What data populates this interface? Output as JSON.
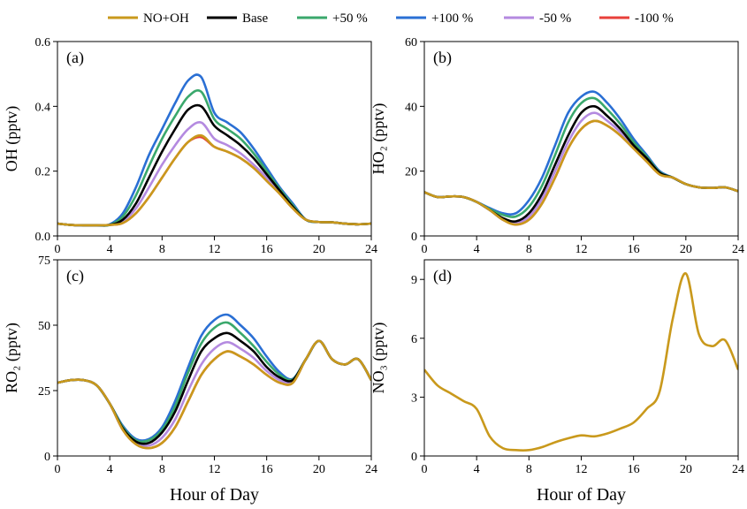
{
  "chart_data": [
    {
      "type": "line",
      "label": "(a)",
      "ylabel": "OH (pptv)",
      "x": [
        0,
        1,
        2,
        3,
        4,
        5,
        6,
        7,
        8,
        9,
        10,
        11,
        12,
        13,
        14,
        15,
        16,
        17,
        18,
        19,
        20,
        21,
        22,
        23,
        24
      ],
      "xlim": [
        0,
        24
      ],
      "xticks": [
        0,
        4,
        8,
        12,
        16,
        20,
        24
      ],
      "ylim": [
        0,
        0.6
      ],
      "yticks": [
        {
          "value": 0,
          "label": "0.0"
        },
        0.2,
        0.4,
        0.6
      ],
      "series": [
        {
          "name": "NO+OH",
          "color": "#c9991c",
          "values": [
            0.038,
            0.034,
            0.033,
            0.033,
            0.034,
            0.04,
            0.07,
            0.12,
            0.18,
            0.24,
            0.29,
            0.31,
            0.275,
            0.26,
            0.24,
            0.21,
            0.17,
            0.13,
            0.085,
            0.05,
            0.043,
            0.042,
            0.038,
            0.036,
            0.038
          ]
        },
        {
          "name": "Base",
          "color": "#000000",
          "values": [
            0.038,
            0.034,
            0.033,
            0.033,
            0.034,
            0.05,
            0.1,
            0.18,
            0.26,
            0.33,
            0.39,
            0.4,
            0.34,
            0.31,
            0.28,
            0.24,
            0.19,
            0.14,
            0.09,
            0.05,
            0.043,
            0.042,
            0.038,
            0.036,
            0.038
          ]
        },
        {
          "name": "+50 %",
          "color": "#3aa86c",
          "values": [
            0.038,
            0.034,
            0.033,
            0.033,
            0.034,
            0.06,
            0.125,
            0.215,
            0.3,
            0.37,
            0.43,
            0.445,
            0.36,
            0.33,
            0.3,
            0.255,
            0.2,
            0.145,
            0.095,
            0.05,
            0.043,
            0.042,
            0.038,
            0.036,
            0.038
          ]
        },
        {
          "name": "+100 %",
          "color": "#2a6fd4",
          "values": [
            0.038,
            0.034,
            0.033,
            0.033,
            0.036,
            0.07,
            0.15,
            0.25,
            0.33,
            0.41,
            0.48,
            0.49,
            0.38,
            0.35,
            0.32,
            0.27,
            0.21,
            0.15,
            0.1,
            0.05,
            0.043,
            0.042,
            0.038,
            0.036,
            0.038
          ]
        },
        {
          "name": "-50 %",
          "color": "#b48ae0",
          "values": [
            0.038,
            0.034,
            0.033,
            0.033,
            0.034,
            0.045,
            0.085,
            0.15,
            0.22,
            0.28,
            0.33,
            0.35,
            0.3,
            0.28,
            0.255,
            0.22,
            0.18,
            0.135,
            0.09,
            0.05,
            0.043,
            0.042,
            0.038,
            0.036,
            0.038
          ]
        },
        {
          "name": "-100 %",
          "color": "#e8403a",
          "values": [
            0.038,
            0.034,
            0.033,
            0.033,
            0.034,
            0.04,
            0.07,
            0.12,
            0.18,
            0.24,
            0.29,
            0.305,
            0.275,
            0.26,
            0.24,
            0.21,
            0.17,
            0.13,
            0.085,
            0.05,
            0.043,
            0.042,
            0.038,
            0.036,
            0.038
          ]
        }
      ]
    },
    {
      "type": "line",
      "label": "(b)",
      "ylabel": "HO₂ (pptv)",
      "x": [
        0,
        1,
        2,
        3,
        4,
        5,
        6,
        7,
        8,
        9,
        10,
        11,
        12,
        13,
        14,
        15,
        16,
        17,
        18,
        19,
        20,
        21,
        22,
        23,
        24
      ],
      "xlim": [
        0,
        24
      ],
      "xticks": [
        0,
        4,
        8,
        12,
        16,
        20,
        24
      ],
      "ylim": [
        0,
        60
      ],
      "yticks": [
        0,
        20,
        40,
        60
      ],
      "series": [
        {
          "name": "NO+OH",
          "color": "#c9991c",
          "values": [
            13.5,
            12,
            12.2,
            12,
            10.5,
            8,
            5,
            3.5,
            5,
            10,
            18,
            27,
            33,
            35.5,
            34,
            31,
            27,
            23,
            19,
            18,
            16,
            15,
            14.8,
            15,
            13.8
          ]
        },
        {
          "name": "Base",
          "color": "#000000",
          "values": [
            13.5,
            12,
            12.2,
            12,
            10.5,
            8,
            5.5,
            4.5,
            7,
            13,
            22,
            31,
            38,
            40,
            37,
            33,
            28,
            24,
            19.5,
            18,
            16,
            15,
            14.8,
            15,
            13.8
          ]
        },
        {
          "name": "+50 %",
          "color": "#3aa86c",
          "values": [
            13.5,
            12,
            12.2,
            12,
            10.5,
            8.3,
            6.5,
            6,
            9,
            15.5,
            25,
            35,
            41,
            42.5,
            39,
            34.5,
            29,
            24.5,
            19.7,
            18,
            16,
            15,
            14.8,
            15,
            13.8
          ]
        },
        {
          "name": "+100 %",
          "color": "#2a6fd4",
          "values": [
            13.5,
            12,
            12.2,
            12,
            10.5,
            8.6,
            7,
            7,
            11,
            18,
            28,
            38,
            43,
            44.5,
            41,
            36,
            30,
            25,
            20,
            18,
            16,
            15,
            14.8,
            15,
            13.8
          ]
        },
        {
          "name": "-50 %",
          "color": "#b48ae0",
          "values": [
            13.5,
            12,
            12.2,
            12,
            10.5,
            8,
            5,
            4,
            6,
            11.5,
            20,
            29,
            35.5,
            38,
            35.5,
            32,
            27.5,
            23.5,
            19.2,
            18,
            16,
            15,
            14.8,
            15,
            13.8
          ]
        },
        {
          "name": "-100 %",
          "color": "#e8403a",
          "values": [
            13.5,
            12,
            12.2,
            12,
            10.5,
            8,
            5,
            3.5,
            5,
            10,
            18,
            27,
            33,
            35.5,
            34,
            31,
            27,
            23,
            19,
            18,
            16,
            15,
            14.8,
            15,
            13.8
          ]
        }
      ]
    },
    {
      "type": "line",
      "label": "(c)",
      "ylabel": "RO₂ (pptv)",
      "xlabel": "Hour of Day",
      "x": [
        0,
        1,
        2,
        3,
        4,
        5,
        6,
        7,
        8,
        9,
        10,
        11,
        12,
        13,
        14,
        15,
        16,
        17,
        18,
        19,
        20,
        21,
        22,
        23,
        24
      ],
      "xlim": [
        0,
        24
      ],
      "xticks": [
        0,
        4,
        8,
        12,
        16,
        20,
        24
      ],
      "ylim": [
        0,
        75
      ],
      "yticks": [
        0,
        25,
        50,
        75
      ],
      "series": [
        {
          "name": "NO+OH",
          "color": "#c9991c",
          "values": [
            28,
            29,
            29,
            27,
            20,
            10,
            4.5,
            3,
            5,
            11,
            21,
            31,
            37,
            40,
            38,
            35,
            31,
            28,
            28,
            37,
            44,
            37,
            35,
            37,
            29
          ]
        },
        {
          "name": "Base",
          "color": "#000000",
          "values": [
            28,
            29,
            29,
            27,
            20,
            10.5,
            5.5,
            5,
            9,
            17,
            29,
            40,
            45,
            47,
            44,
            40,
            34,
            30,
            29,
            37,
            44,
            37,
            35,
            37,
            29
          ]
        },
        {
          "name": "+50 %",
          "color": "#3aa86c",
          "values": [
            28,
            29,
            29,
            27,
            20,
            11,
            6,
            6,
            10,
            19,
            32,
            43,
            49,
            51,
            47,
            42,
            36,
            31,
            29.3,
            37,
            44,
            37,
            35,
            37,
            29
          ]
        },
        {
          "name": "+100 %",
          "color": "#2a6fd4",
          "values": [
            28,
            29,
            29,
            27,
            20,
            11.5,
            6.5,
            6.5,
            11,
            21,
            34,
            46,
            52,
            54,
            50,
            45,
            38,
            32,
            29.5,
            37,
            44,
            37,
            35,
            37,
            29
          ]
        },
        {
          "name": "-50 %",
          "color": "#b48ae0",
          "values": [
            28,
            29,
            29,
            27,
            20,
            10,
            5,
            4,
            7,
            14,
            25,
            35,
            41,
            43.5,
            41,
            37.5,
            32.5,
            29,
            28.5,
            37,
            44,
            37,
            35,
            37,
            29
          ]
        },
        {
          "name": "-100 %",
          "color": "#e8403a",
          "values": [
            28,
            29,
            29,
            27,
            20,
            10,
            4.5,
            3,
            5,
            11,
            21,
            31,
            37,
            40,
            38,
            35,
            31,
            28,
            28,
            37,
            44,
            37,
            35,
            37,
            29
          ]
        }
      ]
    },
    {
      "type": "line",
      "label": "(d)",
      "ylabel": "NO₃ (pptv)",
      "xlabel": "Hour of Day",
      "x": [
        0,
        1,
        2,
        3,
        4,
        5,
        6,
        7,
        8,
        9,
        10,
        11,
        12,
        13,
        14,
        15,
        16,
        17,
        18,
        19,
        20,
        21,
        22,
        23,
        24
      ],
      "xlim": [
        0,
        24
      ],
      "xticks": [
        0,
        4,
        8,
        12,
        16,
        20,
        24
      ],
      "ylim": [
        0,
        10
      ],
      "yticks": [
        0,
        3,
        6,
        9
      ],
      "series": [
        {
          "name": "NO+OH",
          "color": "#c9991c",
          "values": [
            4.4,
            3.6,
            3.2,
            2.8,
            2.4,
            1.0,
            0.4,
            0.3,
            0.3,
            0.45,
            0.7,
            0.9,
            1.05,
            1.0,
            1.15,
            1.4,
            1.7,
            2.4,
            3.3,
            7,
            9.3,
            6.2,
            5.6,
            5.9,
            4.4
          ]
        }
      ]
    }
  ]
}
